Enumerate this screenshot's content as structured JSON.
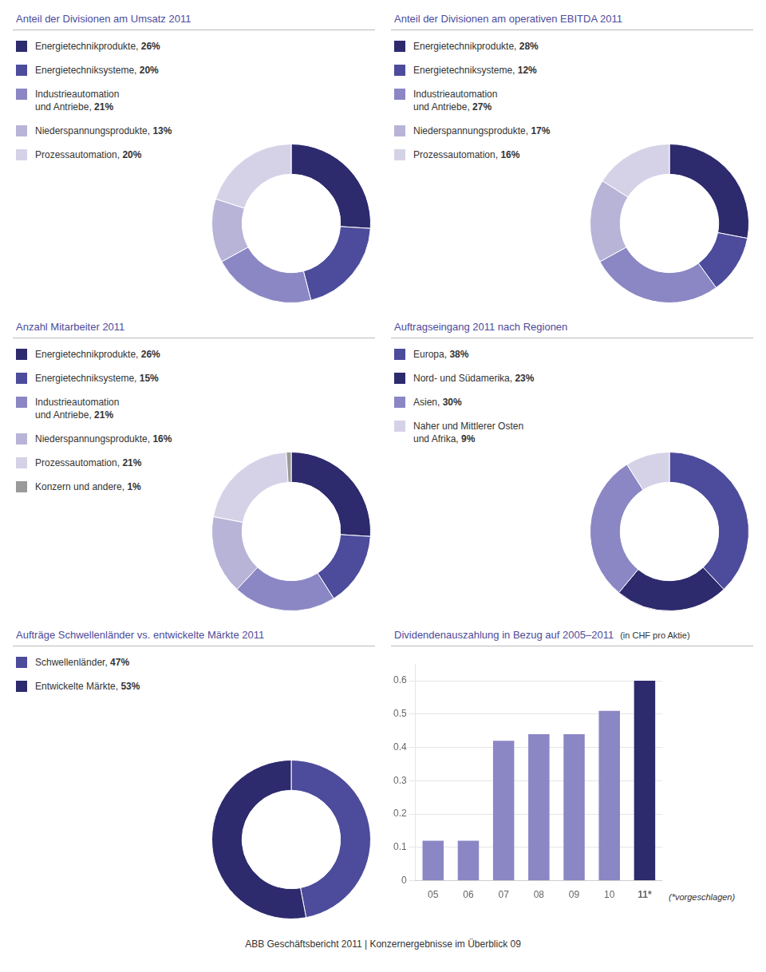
{
  "chart_data": [
    {
      "type": "doughnut",
      "title": "Anteil der Divisionen am Umsatz 2011",
      "categories": [
        "Energietechnikprodukte,",
        "Energietechniksysteme,",
        "Industrieautomation\nund Antriebe,",
        "Niederspannungsprodukte,",
        "Prozessautomation,"
      ],
      "values": [
        26,
        20,
        21,
        13,
        20
      ],
      "value_labels": [
        "26%",
        "20%",
        "21%",
        "13%",
        "20%"
      ],
      "colors": [
        "#2d2a6e",
        "#4d4b9b",
        "#8b87c4",
        "#b8b4d8",
        "#d5d2e8"
      ],
      "legend": "left"
    },
    {
      "type": "doughnut",
      "title": "Anteil der Divisionen am operativen EBITDA 2011",
      "categories": [
        "Energietechnikprodukte,",
        "Energietechniksysteme,",
        "Industrieautomation\nund Antriebe,",
        "Niederspannungsprodukte,",
        "Prozessautomation,"
      ],
      "values": [
        28,
        12,
        27,
        17,
        16
      ],
      "value_labels": [
        "28%",
        "12%",
        "27%",
        "17%",
        "16%"
      ],
      "colors": [
        "#2d2a6e",
        "#4d4b9b",
        "#8b87c4",
        "#b8b4d8",
        "#d5d2e8"
      ],
      "legend": "left"
    },
    {
      "type": "doughnut",
      "title": "Anzahl Mitarbeiter 2011",
      "categories": [
        "Energietechnikprodukte,",
        "Energietechniksysteme,",
        "Industrieautomation\nund Antriebe,",
        "Niederspannungsprodukte,",
        "Prozessautomation,",
        "Konzern und andere,"
      ],
      "values": [
        26,
        15,
        21,
        16,
        21,
        1
      ],
      "value_labels": [
        "26%",
        "15%",
        "21%",
        "16%",
        "21%",
        "1%"
      ],
      "colors": [
        "#2d2a6e",
        "#4d4b9b",
        "#8b87c4",
        "#b8b4d8",
        "#d5d2e8",
        "#9a9a9a"
      ],
      "legend": "left"
    },
    {
      "type": "doughnut",
      "title": "Auftragseingang 2011 nach Regionen",
      "categories": [
        "Europa,",
        "Nord- und Südamerika,",
        "Asien,",
        "Naher und Mittlerer Osten\nund Afrika,"
      ],
      "values": [
        38,
        23,
        30,
        9
      ],
      "value_labels": [
        "38%",
        "23%",
        "30%",
        "9%"
      ],
      "colors": [
        "#4d4b9b",
        "#2d2a6e",
        "#8b87c4",
        "#d5d2e8"
      ],
      "legend": "left"
    },
    {
      "type": "doughnut",
      "title": "Aufträge Schwellenländer vs. entwickelte Märkte 2011",
      "categories": [
        "Schwellenländer,",
        "Entwickelte Märkte,"
      ],
      "values": [
        47,
        53
      ],
      "value_labels": [
        "47%",
        "53%"
      ],
      "colors": [
        "#4d4b9b",
        "#2d2a6e"
      ],
      "legend": "left"
    },
    {
      "type": "bar",
      "title": "Dividendenauszahlung in Bezug auf 2005–2011",
      "subtitle": "(in CHF pro Aktie)",
      "categories": [
        "05",
        "06",
        "07",
        "08",
        "09",
        "10",
        "11*"
      ],
      "values": [
        0.12,
        0.12,
        0.42,
        0.44,
        0.44,
        0.51,
        0.6
      ],
      "colors": [
        "#8b87c4",
        "#8b87c4",
        "#8b87c4",
        "#8b87c4",
        "#8b87c4",
        "#8b87c4",
        "#2d2a6e"
      ],
      "ylim": [
        0,
        0.65
      ],
      "yticks": [
        0,
        0.1,
        0.2,
        0.3,
        0.4,
        0.5,
        0.6
      ],
      "grid": "y",
      "annotations": [
        "(*vorgeschlagen)"
      ]
    }
  ],
  "footer": "ABB Geschäftsbericht 2011 | Konzernergebnisse im Überblick 09"
}
